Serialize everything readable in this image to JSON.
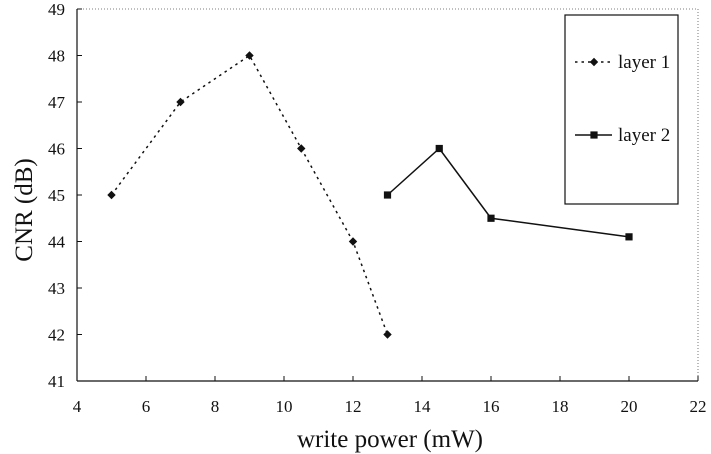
{
  "chart_data": {
    "type": "line",
    "title": "",
    "xlabel": "write power (mW)",
    "ylabel": "CNR (dB)",
    "xlim": [
      4,
      22
    ],
    "ylim": [
      41,
      49
    ],
    "xticks": [
      4,
      6,
      8,
      10,
      12,
      14,
      16,
      18,
      20,
      22
    ],
    "yticks": [
      41,
      42,
      43,
      44,
      45,
      46,
      47,
      48,
      49
    ],
    "grid": false,
    "legend_position": "top-right",
    "series": [
      {
        "name": "layer 1",
        "line_style": "dotted",
        "marker": "diamond",
        "color": "#111111",
        "x": [
          5,
          7,
          9,
          10.5,
          12,
          13
        ],
        "y": [
          45,
          47,
          48,
          46,
          44,
          42
        ]
      },
      {
        "name": "layer 2",
        "line_style": "solid",
        "marker": "square",
        "color": "#111111",
        "x": [
          13,
          14.5,
          16,
          20
        ],
        "y": [
          45,
          46,
          44.5,
          44.1
        ]
      }
    ]
  }
}
